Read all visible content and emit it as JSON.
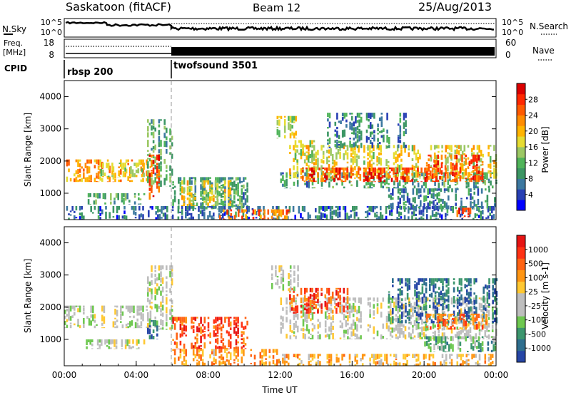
{
  "header": {
    "station": "Saskatoon (fitACF)",
    "beam": "Beam 12",
    "date": "25/Aug/2013"
  },
  "chart_data": [
    {
      "type": "line",
      "panel": "nsky-nsearch",
      "ylabel": "N.Sky",
      "right_label": "N.Search",
      "ytick_labels": [
        "10^5",
        "10^0"
      ],
      "right_ytick_labels": [
        "10^5",
        "10^0"
      ],
      "series_style": [
        "solid",
        "dotted"
      ]
    },
    {
      "type": "line",
      "panel": "freq-nave",
      "ylabel": "Freq.",
      "yunit": "[MHz]",
      "right_label": "Nave",
      "ytick_labels": [
        "18",
        "8"
      ],
      "right_ytick_labels": [
        "60",
        "0"
      ],
      "series_style": [
        "solid",
        "dotted"
      ],
      "mode_change_time": "06:00"
    },
    {
      "type": "table",
      "panel": "cpid",
      "label": "CPID",
      "programs": [
        {
          "name": "rbsp 200",
          "start": "00:00",
          "end": "06:00"
        },
        {
          "name": "twofsound 3501",
          "start": "06:00",
          "end": "24:00"
        }
      ]
    },
    {
      "type": "heatmap",
      "panel": "power",
      "ylabel": "Slant Range [km]",
      "yticks": [
        1000,
        2000,
        3000,
        4000
      ],
      "ylim": [
        180,
        4500
      ],
      "xlim_hours": [
        0,
        24
      ],
      "colorbar": {
        "label": "Power [dB]",
        "ticks": [
          "28",
          "24",
          "20",
          "16",
          "12",
          "8",
          "4"
        ],
        "colors": [
          "#0000ff",
          "#2840b4",
          "#3c78a0",
          "#3c9664",
          "#50b45a",
          "#9cc864",
          "#e6dc32",
          "#ffb400",
          "#ff8c00",
          "#ff5a00",
          "#ff2800",
          "#dc0000"
        ]
      },
      "regions": [
        {
          "t": [
            0.0,
            4.8
          ],
          "r": [
            1350,
            2050
          ],
          "level": 0.68
        },
        {
          "t": [
            1.9,
            4.6
          ],
          "r": [
            1500,
            1950
          ],
          "level": 0.5
        },
        {
          "t": [
            4.6,
            6.0
          ],
          "r": [
            1200,
            3300
          ],
          "level": 0.35
        },
        {
          "t": [
            4.7,
            5.3
          ],
          "r": [
            800,
            2200
          ],
          "level": 0.82
        },
        {
          "t": [
            1.2,
            4.5
          ],
          "r": [
            650,
            1000
          ],
          "level": 0.35
        },
        {
          "t": [
            6.0,
            10.2
          ],
          "r": [
            500,
            1500
          ],
          "level": 0.3
        },
        {
          "t": [
            6.5,
            9.2
          ],
          "r": [
            600,
            1400
          ],
          "level": 0.55
        },
        {
          "t": [
            0.0,
            24.0
          ],
          "r": [
            180,
            600
          ],
          "level": 0.2
        },
        {
          "t": [
            8.5,
            12.5
          ],
          "r": [
            180,
            500
          ],
          "level": 0.75
        },
        {
          "t": [
            12.0,
            24.0
          ],
          "r": [
            1150,
            1650
          ],
          "level": 0.3
        },
        {
          "t": [
            12.5,
            24.0
          ],
          "r": [
            1450,
            2500
          ],
          "level": 0.55
        },
        {
          "t": [
            13.0,
            21.0
          ],
          "r": [
            1350,
            1800
          ],
          "level": 0.82
        },
        {
          "t": [
            12.8,
            14.0
          ],
          "r": [
            1950,
            2650
          ],
          "level": 0.5
        },
        {
          "t": [
            14.5,
            19.0
          ],
          "r": [
            2400,
            3500
          ],
          "level": 0.25
        },
        {
          "t": [
            11.8,
            12.9
          ],
          "r": [
            2700,
            3400
          ],
          "level": 0.5
        },
        {
          "t": [
            18.0,
            24.0
          ],
          "r": [
            500,
            1150
          ],
          "level": 0.25
        },
        {
          "t": [
            20.0,
            23.5
          ],
          "r": [
            1350,
            2200
          ],
          "level": 0.8
        },
        {
          "t": [
            21.8,
            22.6
          ],
          "r": [
            250,
            550
          ],
          "level": 0.88
        }
      ]
    },
    {
      "type": "heatmap",
      "panel": "velocity",
      "ylabel": "Slant Range [km]",
      "yticks": [
        1000,
        2000,
        3000,
        4000
      ],
      "ylim": [
        180,
        4500
      ],
      "xlim_hours": [
        0,
        24
      ],
      "xticks": [
        "00:00",
        "04:00",
        "08:00",
        "12:00",
        "16:00",
        "20:00",
        "00:00"
      ],
      "xlabel": "Time UT",
      "colorbar": {
        "label": "Velocity [m s-1]",
        "ticks": [
          "1000",
          "500",
          "100",
          "25",
          "-25",
          "-100",
          "-500",
          "-1000"
        ],
        "colors": [
          "#2646a6",
          "#2e6e8e",
          "#3c966e",
          "#6ec850",
          "#bebebe",
          "#bebebe",
          "#ffc832",
          "#ff9614",
          "#ff6414",
          "#ff3214",
          "#e61414"
        ]
      },
      "regions": [
        {
          "t": [
            0.0,
            4.8
          ],
          "r": [
            1350,
            2050
          ],
          "level": 0.45
        },
        {
          "t": [
            4.6,
            6.0
          ],
          "r": [
            1300,
            3300
          ],
          "level": 0.45
        },
        {
          "t": [
            4.6,
            5.2
          ],
          "r": [
            1000,
            1600
          ],
          "level": 0.12
        },
        {
          "t": [
            1.2,
            4.5
          ],
          "r": [
            700,
            1000
          ],
          "level": 0.45
        },
        {
          "t": [
            6.0,
            10.2
          ],
          "r": [
            700,
            1700
          ],
          "level": 0.82
        },
        {
          "t": [
            6.0,
            12.0
          ],
          "r": [
            180,
            700
          ],
          "level": 0.68
        },
        {
          "t": [
            12.0,
            24.0
          ],
          "r": [
            180,
            550
          ],
          "level": 0.6
        },
        {
          "t": [
            12.0,
            24.0
          ],
          "r": [
            1000,
            2300
          ],
          "level": 0.45
        },
        {
          "t": [
            12.5,
            16.0
          ],
          "r": [
            1800,
            2600
          ],
          "level": 0.82
        },
        {
          "t": [
            18.0,
            24.0
          ],
          "r": [
            1500,
            2900
          ],
          "level": 0.12
        },
        {
          "t": [
            20.0,
            23.5
          ],
          "r": [
            1300,
            1800
          ],
          "level": 0.75
        },
        {
          "t": [
            20.0,
            24.0
          ],
          "r": [
            600,
            1100
          ],
          "level": 0.28
        },
        {
          "t": [
            11.5,
            13.0
          ],
          "r": [
            2500,
            3300
          ],
          "level": 0.45
        }
      ]
    }
  ]
}
